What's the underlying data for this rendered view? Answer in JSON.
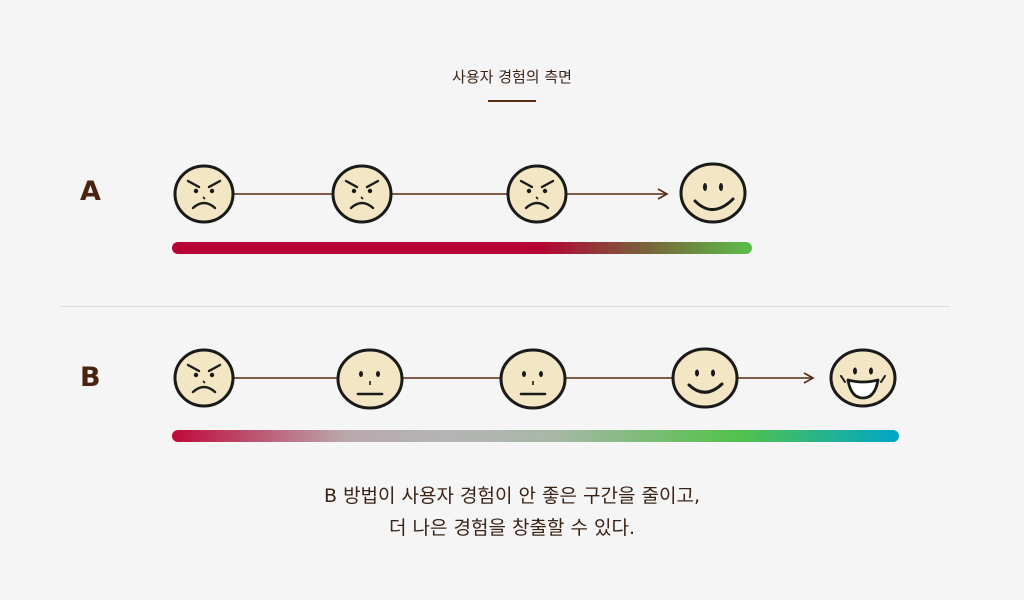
{
  "header": {
    "title": "사용자 경험의 측면"
  },
  "rows": [
    {
      "label": "A",
      "faces": [
        "angry-face-icon",
        "angry-face-icon",
        "angry-face-icon",
        "happy-face-icon"
      ],
      "bar_colors": [
        "#b70033",
        "#7d5a3a",
        "#5bbf4a"
      ]
    },
    {
      "label": "B",
      "faces": [
        "angry-face-icon",
        "neutral-face-icon",
        "neutral-face-icon",
        "smile-face-icon",
        "laughing-face-icon"
      ],
      "bar_colors": [
        "#c0083c",
        "#b4b4b4",
        "#52c24a",
        "#00a6c8"
      ]
    }
  ],
  "caption": {
    "line1": "B 방법이 사용자 경험이 안 좋은 구간을 줄이고,",
    "line2": "더 나은 경험을 창출할 수 있다."
  },
  "colors": {
    "accent": "#5a2a12",
    "face_fill": "#f3e6c4",
    "face_stroke": "#1a1a1a"
  }
}
